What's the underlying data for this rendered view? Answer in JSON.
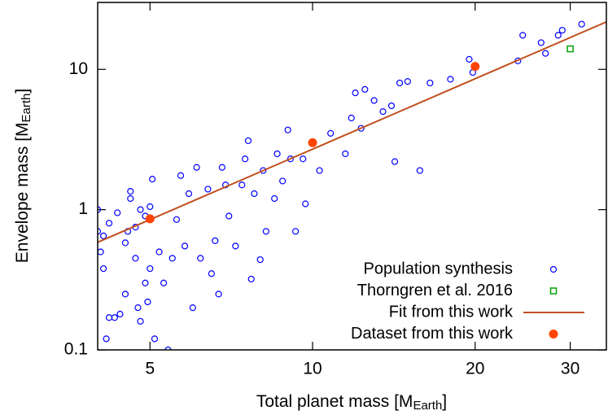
{
  "chart_data": {
    "type": "scatter",
    "xlabel": {
      "main": "Total planet mass [M",
      "sub": "Earth",
      "end": "]"
    },
    "ylabel": {
      "main": "Envelope mass [M",
      "sub": "Earth",
      "end": "]"
    },
    "xscale": "log",
    "yscale": "log",
    "xlim": [
      4,
      35
    ],
    "ylim": [
      0.1,
      30
    ],
    "xticks": [
      5,
      10,
      20,
      30
    ],
    "yticks": [
      0.1,
      1,
      10
    ],
    "legend": "lower right",
    "series": [
      {
        "name": "Population synthesis",
        "color": "#0000ff",
        "marker": "circle",
        "x": [
          4.0,
          4.0,
          4.05,
          4.1,
          4.1,
          4.2,
          4.15,
          4.2,
          4.3,
          4.35,
          4.4,
          4.5,
          4.5,
          4.55,
          4.6,
          4.6,
          4.7,
          4.7,
          4.75,
          4.8,
          4.8,
          4.9,
          4.9,
          4.95,
          5.0,
          5.0,
          5.05,
          5.1,
          5.2,
          5.3,
          5.4,
          5.5,
          5.6,
          5.7,
          5.8,
          5.9,
          6.0,
          6.1,
          6.2,
          6.4,
          6.5,
          6.6,
          6.7,
          6.8,
          6.9,
          7.0,
          7.2,
          7.4,
          7.5,
          7.6,
          7.7,
          7.8,
          8.0,
          8.1,
          8.2,
          8.5,
          8.6,
          8.8,
          9.0,
          9.1,
          9.3,
          9.6,
          9.7,
          10.3,
          10.8,
          11.5,
          11.8,
          12.0,
          12.3,
          12.5,
          13.0,
          13.5,
          14.0,
          14.2,
          14.5,
          15.0,
          15.8,
          16.5,
          18.0,
          19.5,
          19.8,
          24.0,
          24.5,
          26.5,
          27.0,
          28.5,
          29.0,
          31.5
        ],
        "values": [
          1.0,
          0.7,
          0.5,
          0.38,
          0.65,
          0.8,
          0.12,
          0.17,
          0.17,
          0.95,
          0.18,
          0.58,
          0.25,
          0.7,
          1.2,
          1.35,
          0.45,
          0.75,
          0.2,
          0.16,
          1.0,
          0.3,
          0.9,
          0.22,
          1.05,
          0.38,
          1.65,
          0.12,
          0.5,
          0.3,
          0.1,
          0.45,
          0.85,
          1.75,
          0.55,
          1.3,
          0.2,
          2.0,
          0.45,
          1.4,
          0.35,
          0.6,
          0.25,
          2.0,
          1.5,
          0.9,
          0.55,
          1.5,
          2.3,
          3.1,
          0.32,
          1.3,
          0.44,
          1.9,
          0.7,
          1.2,
          2.5,
          1.6,
          3.7,
          2.3,
          0.7,
          2.3,
          1.1,
          1.9,
          3.5,
          2.5,
          4.5,
          6.8,
          3.8,
          7.2,
          6.0,
          5.0,
          5.5,
          2.2,
          8.0,
          8.2,
          1.9,
          8.0,
          8.5,
          11.8,
          9.5,
          11.5,
          17.5,
          15.5,
          13.0,
          17.5,
          19.0,
          21.0
        ]
      },
      {
        "name": "Thorngren et al. 2016",
        "color": "#00a000",
        "marker": "square",
        "x": [
          30
        ],
        "values": [
          14
        ]
      },
      {
        "name": "Fit from this work",
        "color": "#c0501f",
        "marker": "line",
        "x": [
          4,
          35
        ],
        "values": [
          0.585,
          21.8
        ]
      },
      {
        "name": "Dataset from this work",
        "color": "#ff4500",
        "marker": "dot",
        "x": [
          5,
          10,
          20
        ],
        "values": [
          0.86,
          3.0,
          10.5
        ]
      }
    ]
  }
}
